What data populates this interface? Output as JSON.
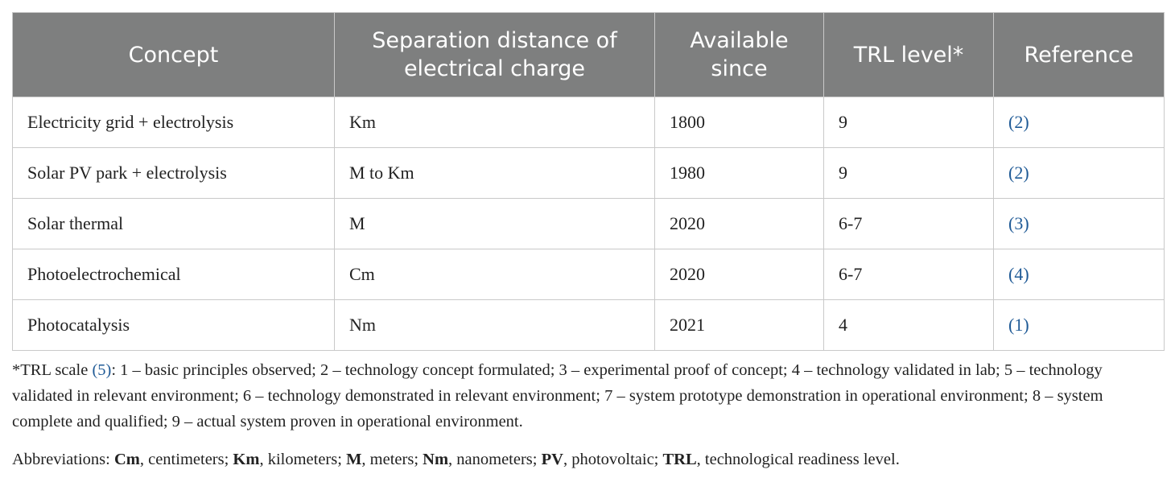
{
  "table": {
    "header": [
      "Concept",
      "Separation distance of electrical charge",
      "Available since",
      "TRL level*",
      "Reference"
    ],
    "rows": [
      [
        "Electricity grid + electrolysis",
        "Km",
        "1800",
        "9",
        "(2)"
      ],
      [
        "Solar PV park + electrolysis",
        "M to Km",
        "1980",
        "9",
        "(2)"
      ],
      [
        "Solar thermal",
        "M",
        "2020",
        "6-7",
        "(3)"
      ],
      [
        "Photoelectrochemical",
        "Cm",
        "2020",
        "6-7",
        "(4)"
      ],
      [
        "Photocatalysis",
        "Nm",
        "2021",
        "4",
        "(1)"
      ]
    ]
  },
  "footnote": {
    "prefix": "*TRL scale",
    "reference": "(5)",
    "text": ": 1 – basic principles observed; 2 – technology concept formulated; 3 – experimental proof of concept; 4 – technology validated in lab; 5 – technology validated in relevant environment; 6 – technology demonstrated in relevant environment; 7 – system prototype demonstration in operational environment; 8 – system complete and qualified; 9 – actual system proven in operational environment."
  },
  "abbreviations": {
    "label": "Abbreviations:",
    "items": [
      {
        "term": "Cm",
        "definition": ", centimeters;"
      },
      {
        "term": "Km",
        "definition": ", kilometers;"
      },
      {
        "term": "M",
        "definition": ", meters;"
      },
      {
        "term": "Nm",
        "definition": ", nanometers;"
      },
      {
        "term": "PV",
        "definition": ", photovoltaic;"
      },
      {
        "term": "TRL",
        "definition": ", technological readiness level."
      }
    ]
  }
}
